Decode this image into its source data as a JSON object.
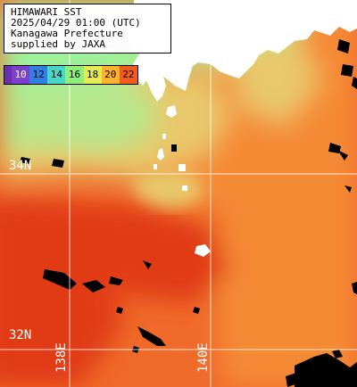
{
  "header": {
    "title": "HIMAWARI SST",
    "datetime": "2025/04/29 01:00 (UTC)",
    "region": "Kanagawa Prefecture",
    "credit": "supplied by JAXA"
  },
  "legend": {
    "labels": [
      "10",
      "12",
      "14",
      "16",
      "18",
      "20",
      "22"
    ],
    "colors": [
      "#7a3fd0",
      "#2f7fe6",
      "#45d8c8",
      "#8ef07a",
      "#e6ea55",
      "#ffb22a",
      "#f35a1e"
    ],
    "text_colors": [
      "#ffffff",
      "#000000",
      "#000000",
      "#000000",
      "#000000",
      "#000000",
      "#000000"
    ]
  },
  "graticule": {
    "latitudes": [
      {
        "label": "34N"
      },
      {
        "label": "32N"
      }
    ],
    "longitudes": [
      {
        "label": "138E"
      },
      {
        "label": "140E"
      }
    ]
  },
  "colors": {
    "warm_sea": "#f06a2a",
    "hot_sea": "#e13a18",
    "orange_sea": "#f58a35",
    "yellow_sea": "#e8c86a",
    "green_sea": "#b6e78c",
    "cool_sea": "#9ef09a",
    "land": "#ffffff",
    "no_data": "#000000",
    "grid": "#ffffff"
  }
}
